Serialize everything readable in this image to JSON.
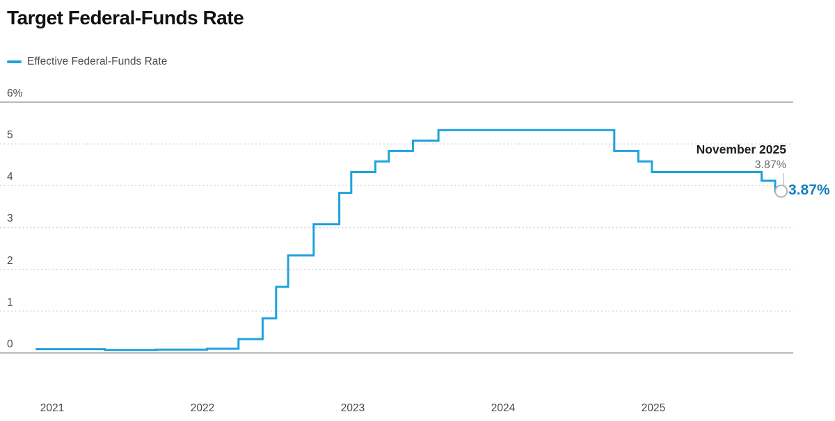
{
  "title": "Target Federal-Funds Rate",
  "legend": {
    "label": "Effective Federal-Funds Rate"
  },
  "annotation": {
    "date_label": "November 2025",
    "rate_label": "3.87%",
    "end_label": "3.87%"
  },
  "colors": {
    "line": "#1fa2dd",
    "end_label_blue": "#1181c1",
    "grid_dotted": "#cbcbcb",
    "grid_solid": "#8f8f8f",
    "pointer_gray": "#bdbdbd",
    "circle_stroke": "#b3b3b3",
    "circle_fill": "#ffffff"
  },
  "chart_data": {
    "type": "line",
    "subtype": "step",
    "title": "Target Federal-Funds Rate",
    "legend_entries": [
      "Effective Federal-Funds Rate"
    ],
    "legend_position": "top-left",
    "grid": "dotted-horizontal",
    "x_axis": {
      "tick_labels": [
        "2021",
        "2022",
        "2023",
        "2024",
        "2025"
      ],
      "tick_years": [
        2021,
        2022,
        2023,
        2024,
        2025
      ],
      "range_years": [
        2020.89,
        2025.93
      ]
    },
    "y_axis": {
      "tick_labels": [
        "6%",
        "5",
        "4",
        "3",
        "2",
        "1",
        "0"
      ],
      "tick_values": [
        6,
        5,
        4,
        3,
        2,
        1,
        0
      ],
      "range": [
        0,
        6
      ],
      "unit": "percent"
    },
    "series": [
      {
        "name": "Effective Federal-Funds Rate",
        "color": "#1fa2dd",
        "steps": [
          {
            "date": "Dec 2020",
            "year": 2020.89,
            "rate": 0.09
          },
          {
            "date": "May 2021",
            "year": 2021.35,
            "rate": 0.07
          },
          {
            "date": "Sep 2021",
            "year": 2021.69,
            "rate": 0.08
          },
          {
            "date": "Jan 2022",
            "year": 2022.03,
            "rate": 0.1
          },
          {
            "date": "Mar 2022",
            "year": 2022.24,
            "rate": 0.33
          },
          {
            "date": "May 2022",
            "year": 2022.4,
            "rate": 0.83
          },
          {
            "date": "Jun 2022",
            "year": 2022.49,
            "rate": 1.58
          },
          {
            "date": "Jul 2022",
            "year": 2022.57,
            "rate": 2.33
          },
          {
            "date": "Sep 2022",
            "year": 2022.74,
            "rate": 3.08
          },
          {
            "date": "Nov 2022",
            "year": 2022.91,
            "rate": 3.83
          },
          {
            "date": "Dec 2022",
            "year": 2022.99,
            "rate": 4.33
          },
          {
            "date": "Feb 2023",
            "year": 2023.15,
            "rate": 4.58
          },
          {
            "date": "Mar 2023",
            "year": 2023.24,
            "rate": 4.83
          },
          {
            "date": "May 2023",
            "year": 2023.4,
            "rate": 5.08
          },
          {
            "date": "Jul 2023",
            "year": 2023.57,
            "rate": 5.33
          },
          {
            "date": "Sep 2024",
            "year": 2024.74,
            "rate": 4.83
          },
          {
            "date": "Nov 2024",
            "year": 2024.9,
            "rate": 4.58
          },
          {
            "date": "Dec 2024",
            "year": 2024.99,
            "rate": 4.33
          },
          {
            "date": "Sep 2025",
            "year": 2025.72,
            "rate": 4.12
          },
          {
            "date": "Oct 2025",
            "year": 2025.81,
            "rate": 3.87
          }
        ],
        "end_point": {
          "date": "Nov 2025",
          "year": 2025.85,
          "rate": 3.87,
          "label": "3.87%"
        }
      }
    ]
  }
}
